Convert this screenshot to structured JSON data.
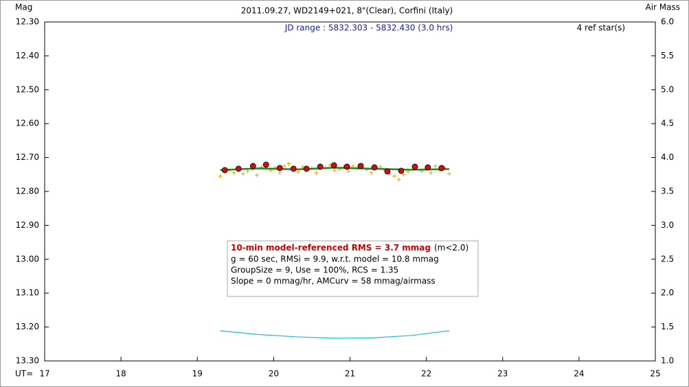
{
  "chart_data": {
    "type": "scatter",
    "title": "2011.09.27, WD2149+021, 8\"(Clear), Corfini (Italy)",
    "subtitle": "JD range : 5832.303 - 5832.430 (3.0 hrs)",
    "ref_stars": "4 ref star(s)",
    "y_label": "Mag",
    "y2_label": "Air Mass",
    "x_label": "UT=",
    "xlim": [
      17,
      25
    ],
    "xticks": [
      17,
      18,
      19,
      20,
      21,
      22,
      23,
      24,
      25
    ],
    "ylim": [
      13.3,
      12.3
    ],
    "yticks": [
      {
        "value": 12.3,
        "label": "12.30"
      },
      {
        "value": 12.4,
        "label": "12.40"
      },
      {
        "value": 12.5,
        "label": "12.50"
      },
      {
        "value": 12.6,
        "label": "12.60"
      },
      {
        "value": 12.7,
        "label": "12.70"
      },
      {
        "value": 12.8,
        "label": "12.80"
      },
      {
        "value": 12.9,
        "label": "12.90"
      },
      {
        "value": 13.0,
        "label": "13.00"
      },
      {
        "value": 13.1,
        "label": "13.10"
      },
      {
        "value": 13.2,
        "label": "13.20"
      },
      {
        "value": 13.3,
        "label": "13.30"
      }
    ],
    "y2lim": [
      1.0,
      6.0
    ],
    "y2ticks": [
      {
        "value": 6.0,
        "label": "6.0"
      },
      {
        "value": 5.5,
        "label": "5.5"
      },
      {
        "value": 5.0,
        "label": "5.0"
      },
      {
        "value": 4.5,
        "label": "4.5"
      },
      {
        "value": 4.0,
        "label": "4.0"
      },
      {
        "value": 3.5,
        "label": "3.5"
      },
      {
        "value": 3.0,
        "label": "3.0"
      },
      {
        "value": 2.5,
        "label": "2.5"
      },
      {
        "value": 2.0,
        "label": "2.0"
      },
      {
        "value": 1.5,
        "label": "1.5"
      },
      {
        "value": 1.0,
        "label": "1.0"
      }
    ],
    "series": [
      {
        "marker": "cross",
        "color": "#f0a000",
        "x": [
          19.3,
          19.36,
          19.42,
          19.48,
          19.54,
          19.6,
          19.66,
          19.72,
          19.78,
          19.84,
          19.9,
          19.96,
          20.02,
          20.08,
          20.14,
          20.2,
          20.26,
          20.32,
          20.38,
          20.44,
          20.5,
          20.56,
          20.62,
          20.68,
          20.74,
          20.8,
          20.86,
          20.92,
          20.98,
          21.04,
          21.1,
          21.16,
          21.22,
          21.28,
          21.34,
          21.4,
          21.46,
          21.52,
          21.58,
          21.64,
          21.7,
          21.76,
          21.82,
          21.88,
          21.94,
          22.0,
          22.06,
          22.12,
          22.18,
          22.24,
          22.3
        ],
        "values": [
          12.755,
          12.742,
          12.738,
          12.745,
          12.731,
          12.748,
          12.74,
          12.735,
          12.752,
          12.728,
          12.722,
          12.738,
          12.73,
          12.745,
          12.725,
          12.718,
          12.735,
          12.742,
          12.728,
          12.738,
          12.732,
          12.745,
          12.726,
          12.73,
          12.722,
          12.738,
          12.735,
          12.728,
          12.74,
          12.725,
          12.732,
          12.72,
          12.736,
          12.745,
          12.73,
          12.728,
          12.738,
          12.748,
          12.755,
          12.765,
          12.75,
          12.742,
          12.735,
          12.728,
          12.74,
          12.733,
          12.745,
          12.725,
          12.738,
          12.73,
          12.748
        ]
      },
      {
        "marker": "line",
        "color": "#1a8a1a",
        "x": [
          19.3,
          19.8,
          20.3,
          20.8,
          21.3,
          21.8,
          22.3
        ],
        "values": [
          12.737,
          12.732,
          12.735,
          12.73,
          12.733,
          12.736,
          12.734
        ]
      },
      {
        "marker": "circle",
        "color": "#cc1010",
        "x": [
          19.36,
          19.54,
          19.73,
          19.9,
          20.08,
          20.26,
          20.43,
          20.61,
          20.79,
          20.96,
          21.14,
          21.32,
          21.49,
          21.67,
          21.85,
          22.02,
          22.2
        ],
        "values": [
          12.737,
          12.733,
          12.725,
          12.721,
          12.731,
          12.733,
          12.733,
          12.727,
          12.723,
          12.727,
          12.725,
          12.729,
          12.741,
          12.739,
          12.727,
          12.729,
          12.731
        ]
      },
      {
        "marker": "line",
        "color": "#20b8d8",
        "axis": "y2",
        "x": [
          19.3,
          19.8,
          20.3,
          20.8,
          21.3,
          21.8,
          22.3
        ],
        "values": [
          1.445,
          1.39,
          1.355,
          1.335,
          1.34,
          1.375,
          1.445
        ]
      }
    ],
    "stats": {
      "headline": "10-min model-referenced RMS = 3.7 mmag",
      "headline_note": "(m<2.0)",
      "lines": [
        "g = 60 sec, RMSi = 9.9, w.r.t. model = 10.8 mmag",
        "GroupSize = 9, Use = 100%, RCS = 1.35",
        "Slope = 0 mmag/hr, AMCurv = 58 mmag/airmass"
      ]
    }
  }
}
